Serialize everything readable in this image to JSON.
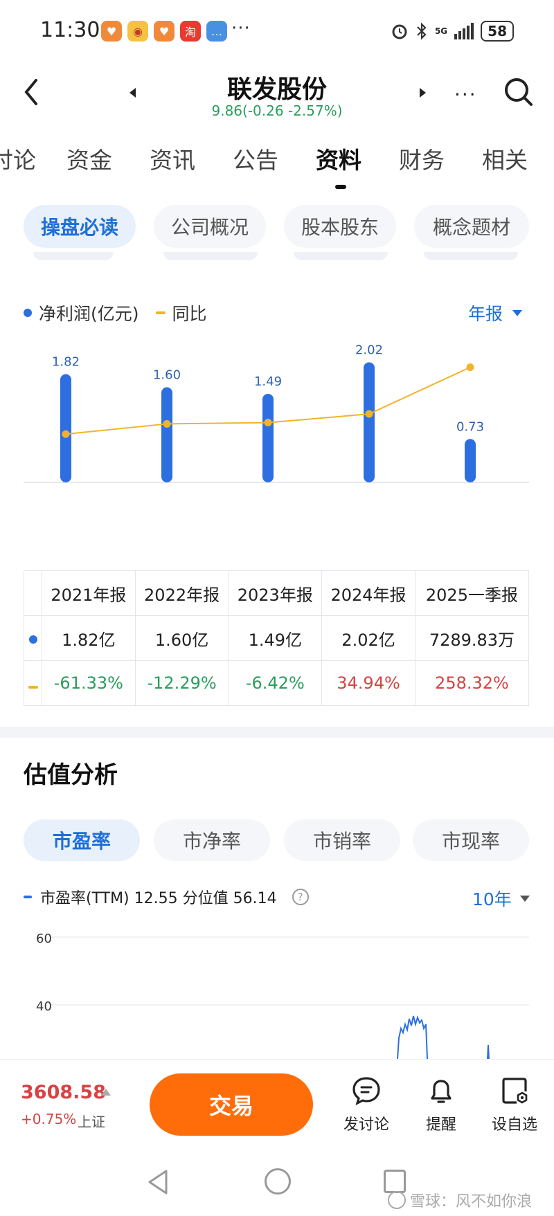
{
  "status_bar": {
    "time": "11:30",
    "battery": "58",
    "network": "5G",
    "apps": [
      {
        "icon": "heart-app-icon",
        "color": "#f08a3a"
      },
      {
        "icon": "weibo-icon",
        "color": "#f5c242"
      },
      {
        "icon": "heart-app-icon",
        "color": "#f08a3a"
      },
      {
        "icon": "taobao-icon",
        "color": "#e63b2e",
        "label": "淘"
      },
      {
        "icon": "message-icon",
        "color": "#4a90e2"
      }
    ],
    "more": "···"
  },
  "header": {
    "title": "联发股份",
    "quote": "9.86(-0.26 -2.57%)",
    "more_label": "···"
  },
  "tabs": [
    {
      "label": "讨论",
      "active": false
    },
    {
      "label": "资金",
      "active": false
    },
    {
      "label": "资讯",
      "active": false
    },
    {
      "label": "公告",
      "active": false
    },
    {
      "label": "资料",
      "active": true
    },
    {
      "label": "财务",
      "active": false
    },
    {
      "label": "相关",
      "active": false
    }
  ],
  "subtabs": [
    {
      "label": "操盘必读",
      "active": true
    },
    {
      "label": "公司概况",
      "active": false
    },
    {
      "label": "股本股东",
      "active": false
    },
    {
      "label": "概念题材",
      "active": false
    }
  ],
  "profit_chart": {
    "legend_profit": "净利润(亿元)",
    "legend_yoy": "同比",
    "period": "年报",
    "colors": {
      "bar": "#2d6fe0",
      "line": "#f0b429",
      "positive": "#d94242",
      "negative": "#2a9d5c"
    }
  },
  "chart_data": {
    "type": "bar",
    "categories": [
      "2021年报",
      "2022年报",
      "2023年报",
      "2024年报",
      "2025一季报"
    ],
    "series": [
      {
        "name": "净利润(亿元)",
        "type": "bar",
        "values": [
          1.82,
          1.6,
          1.49,
          2.02,
          0.73
        ],
        "labels": [
          "1.82",
          "1.60",
          "1.49",
          "2.02",
          "0.73"
        ]
      },
      {
        "name": "同比",
        "type": "line",
        "values": [
          -61.33,
          -12.29,
          -6.42,
          34.94,
          258.32
        ]
      }
    ],
    "ylim": [
      0,
      2.2
    ],
    "yoy_range": [
      -120,
      320
    ]
  },
  "table": {
    "headers": [
      "2021年报",
      "2022年报",
      "2023年报",
      "2024年报",
      "2025一季报"
    ],
    "profit": [
      "1.82亿",
      "1.60亿",
      "1.49亿",
      "2.02亿",
      "7289.83万"
    ],
    "yoy": [
      {
        "text": "-61.33%",
        "sign": "neg"
      },
      {
        "text": "-12.29%",
        "sign": "neg"
      },
      {
        "text": "-6.42%",
        "sign": "neg"
      },
      {
        "text": "34.94%",
        "sign": "pos"
      },
      {
        "text": "258.32%",
        "sign": "pos"
      }
    ]
  },
  "valuation": {
    "title": "估值分析",
    "tabs": [
      {
        "label": "市盈率",
        "active": true
      },
      {
        "label": "市净率",
        "active": false
      },
      {
        "label": "市销率",
        "active": false
      },
      {
        "label": "市现率",
        "active": false
      }
    ],
    "legend": "市盈率(TTM) 12.55 分位值 56.14",
    "help": "?",
    "range": "10年",
    "y_ticks": [
      "60",
      "40"
    ]
  },
  "bottom_bar": {
    "index_value": "3608.58",
    "index_change": "+0.75%",
    "index_name": "上证",
    "trade_label": "交易",
    "actions": [
      {
        "label": "发讨论",
        "icon": "discussion-icon"
      },
      {
        "label": "提醒",
        "icon": "bell-icon"
      },
      {
        "label": "设自选",
        "icon": "watchlist-icon"
      }
    ]
  },
  "watermark": "雪球：风不如你浪"
}
